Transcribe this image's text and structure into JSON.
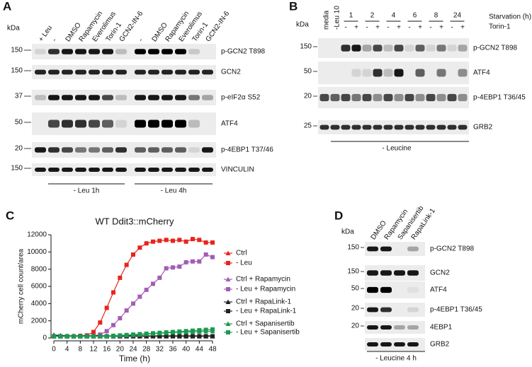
{
  "panels": {
    "A": {
      "letter": "A",
      "kda": "kDa",
      "lanes": [
        "+ Leu",
        "-",
        "DMSO",
        "Rapamycin",
        "Everolimus",
        "Torin-1",
        "GCN2-IN-6",
        "-",
        "DMSO",
        "Rapamycin",
        "Everolimus",
        "Torin-1",
        "GCN2-IN-6"
      ],
      "rows": [
        {
          "label": "p-GCN2 T898",
          "marker": 150
        },
        {
          "label": "GCN2",
          "marker": 150
        },
        {
          "label": "p-eIF2α S52",
          "marker": 37
        },
        {
          "label": "ATF4",
          "marker": 50
        },
        {
          "label": "p-4EBP1 T37/46",
          "marker": 20
        },
        {
          "label": "VINCULIN",
          "marker": 150
        }
      ],
      "groups": [
        "- Leu 1h",
        "- Leu 4h"
      ]
    },
    "B": {
      "letter": "B",
      "kda": "kDa",
      "lanes": [
        "media",
        "-Leu 10"
      ],
      "times": [
        "1",
        "2",
        "4",
        "6",
        "8",
        "24"
      ],
      "time_title": "Starvation (h)",
      "torin": [
        "-",
        "+",
        "-",
        "+",
        "-",
        "+",
        "-",
        "+",
        "-",
        "+",
        "-",
        "+"
      ],
      "torin_title": "Torin-1",
      "rows": [
        {
          "label": "p-GCN2 T898",
          "marker": 150
        },
        {
          "label": "ATF4",
          "marker": 50
        },
        {
          "label": "p-4EBP1 T36/45",
          "marker": 20
        },
        {
          "label": "GRB2",
          "marker": 25
        }
      ],
      "group": "- Leucine"
    },
    "D": {
      "letter": "D",
      "kda": "kDa",
      "lanes": [
        "DMSO",
        "Rapamycin",
        "Sapanisertib",
        "RapaLink-1"
      ],
      "rows": [
        {
          "label": "p-GCN2 T898",
          "marker": 150
        },
        {
          "label": "GCN2",
          "marker": 150
        },
        {
          "label": "ATF4",
          "marker": 50
        },
        {
          "label": "p-4EBP1 T36/45",
          "marker": 20
        },
        {
          "label": "4EBP1",
          "marker": 20
        },
        {
          "label": "GRB2"
        }
      ],
      "group": "- Leucine 4 h"
    }
  },
  "chart_data": {
    "type": "line",
    "letter": "C",
    "title": "WT Ddit3::mCherry",
    "x_label": "Time (h)",
    "y_label": "mCherry  cell count/area",
    "x": [
      0,
      2,
      4,
      6,
      8,
      10,
      12,
      14,
      16,
      18,
      20,
      22,
      24,
      26,
      28,
      30,
      32,
      34,
      36,
      38,
      40,
      42,
      44,
      46,
      48
    ],
    "xlim": [
      0,
      48
    ],
    "xticks": [
      0,
      4,
      8,
      12,
      16,
      20,
      24,
      28,
      32,
      36,
      40,
      44,
      48
    ],
    "ylim": [
      0,
      12000
    ],
    "yticks": [
      0,
      2000,
      4000,
      6000,
      8000,
      10000,
      12000
    ],
    "series": [
      {
        "name": "Ctrl",
        "color": "#e8241c",
        "marker": "triangle",
        "values": [
          250,
          250,
          250,
          250,
          250,
          250,
          250,
          250,
          250,
          250,
          250,
          250,
          250,
          250,
          250,
          250,
          250,
          250,
          250,
          250,
          250,
          250,
          250,
          250,
          250
        ]
      },
      {
        "name": "- Leu",
        "color": "#e8241c",
        "marker": "square",
        "values": [
          200,
          200,
          200,
          200,
          250,
          300,
          700,
          1800,
          3500,
          5300,
          7000,
          8500,
          9700,
          10500,
          11000,
          11200,
          11300,
          11400,
          11300,
          11400,
          11200,
          11500,
          11400,
          11100,
          11100
        ]
      },
      {
        "name": "Ctrl + Rapamycin",
        "color": "#a35db5",
        "marker": "triangle",
        "values": [
          200,
          200,
          200,
          200,
          200,
          200,
          200,
          200,
          200,
          200,
          200,
          200,
          200,
          200,
          200,
          200,
          200,
          200,
          200,
          200,
          200,
          200,
          200,
          200,
          200
        ]
      },
      {
        "name": "- Leu + Rapamycin",
        "color": "#a35db5",
        "marker": "square",
        "values": [
          200,
          200,
          200,
          200,
          200,
          200,
          250,
          400,
          800,
          1500,
          2300,
          3200,
          4000,
          4800,
          5600,
          6300,
          7000,
          8100,
          8200,
          8300,
          8800,
          8900,
          8900,
          9700,
          9400
        ]
      },
      {
        "name": "Ctrl + RapaLink-1",
        "color": "#222222",
        "marker": "triangle",
        "values": [
          350,
          300,
          250,
          250,
          250,
          250,
          250,
          250,
          250,
          250,
          250,
          250,
          250,
          250,
          250,
          250,
          250,
          250,
          250,
          250,
          250,
          250,
          250,
          250,
          250
        ]
      },
      {
        "name": "- Leu + RapaLink-1",
        "color": "#222222",
        "marker": "square",
        "values": [
          200,
          200,
          200,
          200,
          200,
          200,
          200,
          200,
          200,
          200,
          200,
          200,
          200,
          200,
          200,
          200,
          200,
          200,
          200,
          200,
          200,
          200,
          200,
          200,
          200
        ]
      },
      {
        "name": "Ctrl + Sapanisertib",
        "color": "#1a9a50",
        "marker": "triangle",
        "values": [
          200,
          200,
          200,
          200,
          200,
          200,
          200,
          200,
          200,
          250,
          300,
          320,
          350,
          400,
          450,
          500,
          550,
          600,
          650,
          680,
          700,
          720,
          750,
          780,
          800
        ]
      },
      {
        "name": "- Leu + Sapanisertib",
        "color": "#1a9a50",
        "marker": "square",
        "values": [
          200,
          200,
          200,
          200,
          200,
          200,
          200,
          200,
          200,
          250,
          300,
          350,
          400,
          450,
          500,
          550,
          600,
          650,
          700,
          750,
          800,
          850,
          900,
          950,
          1000
        ]
      }
    ]
  }
}
